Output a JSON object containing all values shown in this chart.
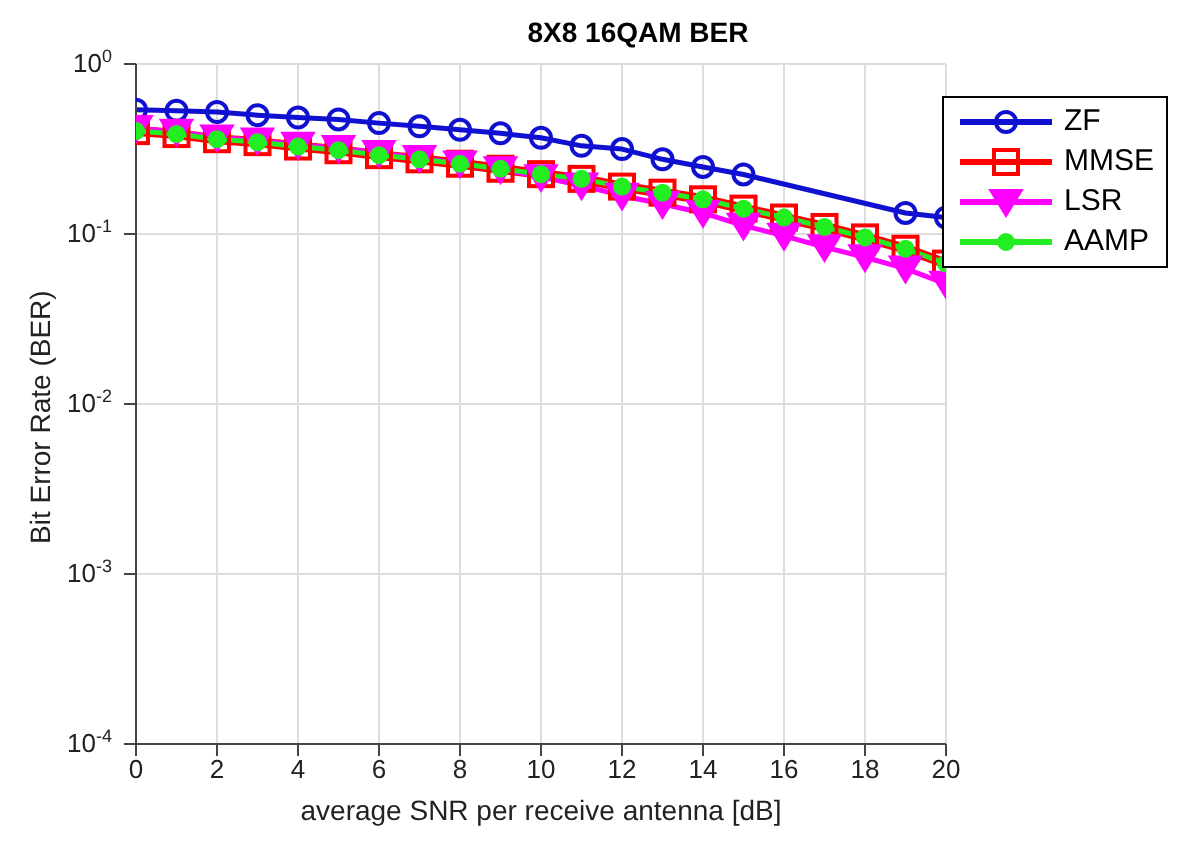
{
  "chart_data": {
    "type": "line",
    "title": "8X8 16QAM BER",
    "xlabel": "average SNR per receive antenna [dB]",
    "ylabel": "Bit Error Rate (BER)",
    "x": [
      0,
      1,
      2,
      3,
      4,
      5,
      6,
      7,
      8,
      9,
      10,
      11,
      12,
      13,
      14,
      15,
      16,
      17,
      18,
      19,
      20
    ],
    "series": [
      {
        "name": "ZF",
        "color": "#1010d0",
        "marker": "circle",
        "values": [
          0.539,
          0.531,
          0.522,
          0.5,
          0.484,
          0.472,
          0.449,
          0.43,
          0.41,
          0.391,
          0.368,
          0.33,
          0.316,
          0.275,
          0.248,
          0.224,
          null,
          null,
          null,
          0.133,
          0.125
        ]
      },
      {
        "name": "MMSE",
        "color": "#ff0000",
        "marker": "square",
        "values": [
          0.403,
          0.387,
          0.361,
          0.347,
          0.327,
          0.311,
          0.291,
          0.275,
          0.259,
          0.242,
          0.225,
          0.211,
          0.19,
          0.175,
          0.16,
          0.141,
          0.125,
          0.11,
          0.0955,
          0.0819,
          0.067
        ]
      },
      {
        "name": "LSR",
        "color": "#ff00ff",
        "marker": "triangle",
        "values": [
          0.42,
          0.4,
          0.37,
          0.355,
          0.335,
          0.32,
          0.3,
          0.28,
          0.26,
          0.24,
          0.216,
          0.193,
          0.168,
          0.15,
          0.133,
          0.112,
          0.0976,
          0.0837,
          0.073,
          0.0626,
          0.0509
        ]
      },
      {
        "name": "AAMP",
        "color": "#22ee22",
        "marker": "circle",
        "values": [
          0.403,
          0.387,
          0.361,
          0.347,
          0.327,
          0.311,
          0.291,
          0.275,
          0.259,
          0.242,
          0.225,
          0.211,
          0.19,
          0.175,
          0.16,
          0.141,
          0.125,
          0.11,
          0.0955,
          0.0819,
          0.067
        ]
      }
    ],
    "xlim": [
      0,
      20
    ],
    "xticks": [
      0,
      2,
      4,
      6,
      8,
      10,
      12,
      14,
      16,
      18,
      20
    ],
    "ylim": [
      0.0001,
      1
    ],
    "yticks": [
      {
        "value": 0.0001,
        "label": "10$^{-4}$"
      },
      {
        "value": 0.001,
        "label": "10$^{-3}$"
      },
      {
        "value": 0.01,
        "label": "10$^{-2}$"
      },
      {
        "value": 0.1,
        "label": "10$^{-1}$"
      },
      {
        "value": 1,
        "label": "10$^{0}$"
      }
    ],
    "log": "y",
    "grid": true,
    "legend": "top right"
  }
}
